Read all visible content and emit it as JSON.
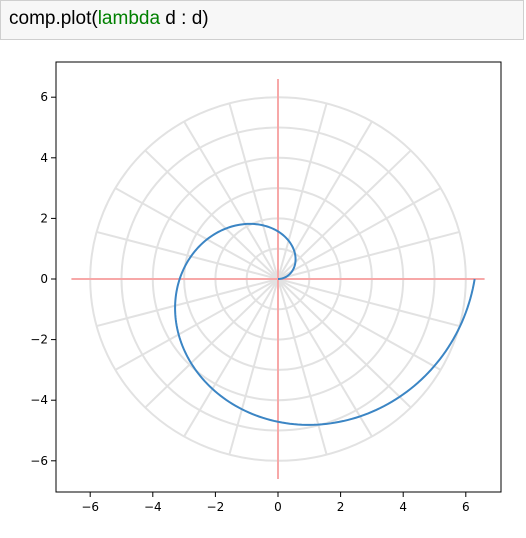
{
  "code_cell": {
    "prefix": "comp.plot(",
    "keyword": "lambda",
    "suffix": " d : d)"
  },
  "colors": {
    "curve": "#3b85c4",
    "axes_lines": "#f7a8a8",
    "polar_grid": "#e2e2e2",
    "code_keyword": "#008000",
    "code_background": "#f7f7f7"
  },
  "chart_data": {
    "type": "line",
    "title": "",
    "xlabel": "",
    "ylabel": "",
    "xlim": [
      -7.2,
      7.2
    ],
    "ylim": [
      -7.2,
      7.2
    ],
    "xticks": [
      -6,
      -4,
      -2,
      0,
      2,
      4,
      6
    ],
    "yticks": [
      -6,
      -4,
      -2,
      0,
      2,
      4,
      6
    ],
    "xtick_labels": [
      "−6",
      "−4",
      "−2",
      "0",
      "2",
      "4",
      "6"
    ],
    "ytick_labels": [
      "−6",
      "−4",
      "−2",
      "0",
      "2",
      "4",
      "6"
    ],
    "grid": "polar",
    "polar_grid": {
      "circle_radii": [
        1,
        2,
        3,
        4,
        5,
        6
      ],
      "radial_line_count": 24,
      "radial_extent": 6
    },
    "reference_axes": {
      "extent": 6.6
    },
    "series": [
      {
        "curve": "archimedean spiral r = θ",
        "theta_range": [
          0,
          6.283
        ],
        "points": [
          [
            0,
            0
          ],
          [
            0.29,
            0.22
          ],
          [
            0.45,
            0.78
          ],
          [
            0,
            1.57
          ],
          [
            -0.99,
            1.73
          ],
          [
            -2.3,
            1.0
          ],
          [
            -3.14,
            0
          ],
          [
            -3.26,
            -1.4
          ],
          [
            -2.4,
            -3.5
          ],
          [
            -1.1,
            -4.6
          ],
          [
            0,
            -4.71
          ],
          [
            1.5,
            -4.6
          ],
          [
            3.3,
            -3.9
          ],
          [
            5.0,
            -2.6
          ],
          [
            5.9,
            -1.2
          ],
          [
            6.283,
            0
          ]
        ]
      }
    ]
  }
}
